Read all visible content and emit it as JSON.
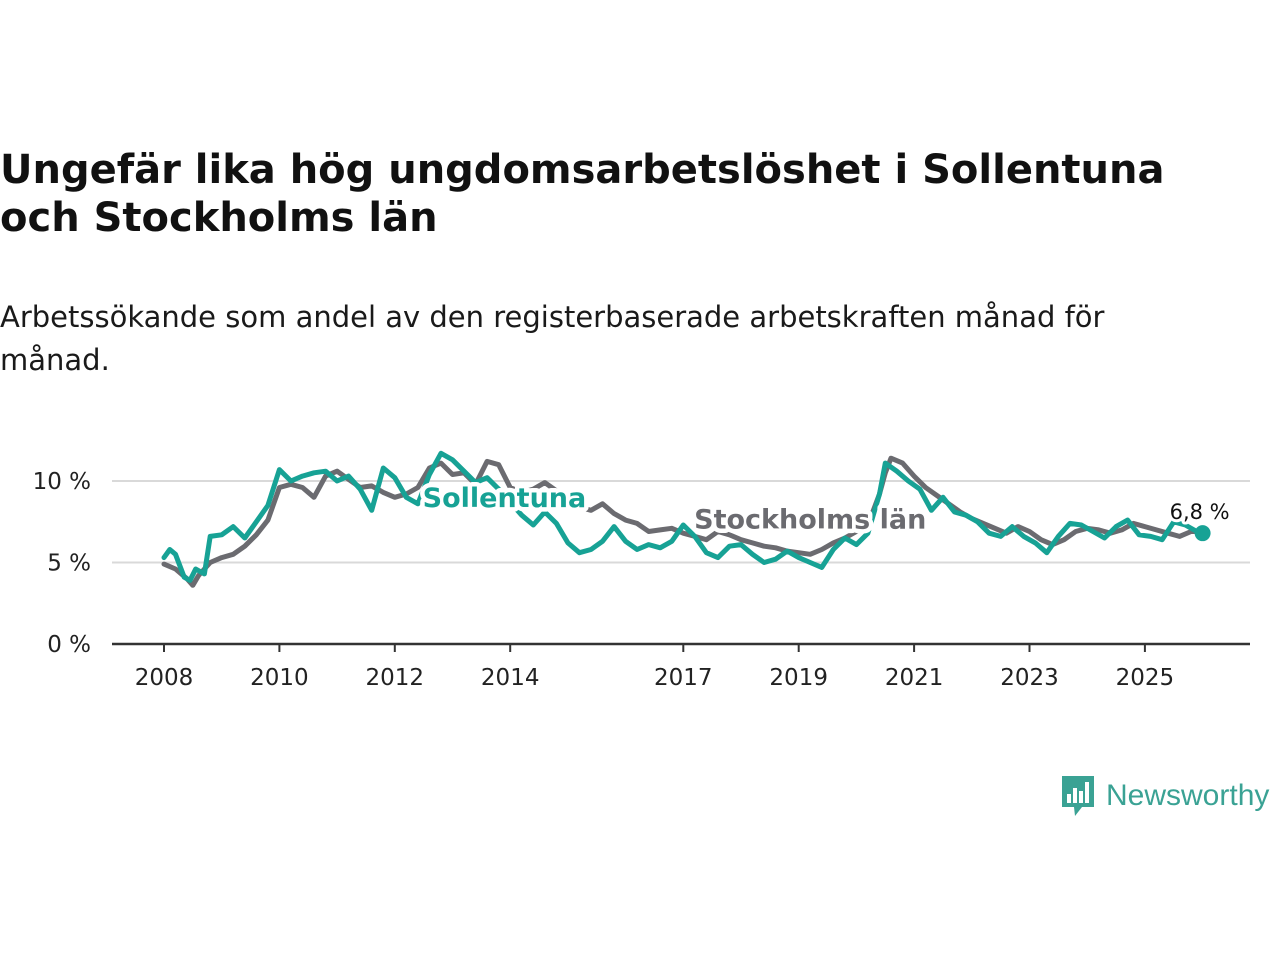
{
  "header": {
    "title": "Ungefär lika hög ungdomsarbetslöshet i Sollentuna och Stockholms län",
    "subtitle": "Arbetssökande som andel av den registerbaserade arbetskraften månad för månad."
  },
  "brand": {
    "name": "Newsworthy",
    "color": "#3aa294"
  },
  "chart_data": {
    "type": "line",
    "title": "Ungefär lika hög ungdomsarbetslöshet i Sollentuna och Stockholms län",
    "subtitle": "Arbetssökande som andel av den registerbaserade arbetskraften månad för månad.",
    "xlabel": "",
    "ylabel": "",
    "xlim": [
      2008,
      2026.9
    ],
    "ylim": [
      0,
      13
    ],
    "y_ticks": [
      {
        "value": 0,
        "label": "0 %"
      },
      {
        "value": 5,
        "label": "5 %"
      },
      {
        "value": 10,
        "label": "10 %"
      }
    ],
    "x_ticks": [
      {
        "value": 2008,
        "label": "2008"
      },
      {
        "value": 2010,
        "label": "2010"
      },
      {
        "value": 2012,
        "label": "2012"
      },
      {
        "value": 2014,
        "label": "2014"
      },
      {
        "value": 2017,
        "label": "2017"
      },
      {
        "value": 2019,
        "label": "2019"
      },
      {
        "value": 2021,
        "label": "2021"
      },
      {
        "value": 2023,
        "label": "2023"
      },
      {
        "value": 2025,
        "label": "2025"
      }
    ],
    "grid": true,
    "end_label": "6,8 %",
    "series": [
      {
        "name": "Stockholms län",
        "color": "#6b6b70",
        "label_pos": [
          2019.2,
          7.1
        ],
        "points": [
          [
            2008.0,
            4.9
          ],
          [
            2008.2,
            4.6
          ],
          [
            2008.4,
            4.0
          ],
          [
            2008.5,
            3.6
          ],
          [
            2008.6,
            4.2
          ],
          [
            2008.8,
            5.0
          ],
          [
            2009.0,
            5.3
          ],
          [
            2009.2,
            5.5
          ],
          [
            2009.4,
            6.0
          ],
          [
            2009.6,
            6.7
          ],
          [
            2009.8,
            7.6
          ],
          [
            2010.0,
            9.6
          ],
          [
            2010.2,
            9.8
          ],
          [
            2010.4,
            9.6
          ],
          [
            2010.6,
            9.0
          ],
          [
            2010.8,
            10.3
          ],
          [
            2011.0,
            10.6
          ],
          [
            2011.2,
            10.1
          ],
          [
            2011.4,
            9.6
          ],
          [
            2011.6,
            9.7
          ],
          [
            2011.8,
            9.3
          ],
          [
            2012.0,
            9.0
          ],
          [
            2012.2,
            9.2
          ],
          [
            2012.4,
            9.6
          ],
          [
            2012.6,
            10.8
          ],
          [
            2012.8,
            11.1
          ],
          [
            2013.0,
            10.4
          ],
          [
            2013.2,
            10.5
          ],
          [
            2013.4,
            9.8
          ],
          [
            2013.6,
            11.2
          ],
          [
            2013.8,
            11.0
          ],
          [
            2014.0,
            9.6
          ],
          [
            2014.2,
            9.3
          ],
          [
            2014.4,
            9.5
          ],
          [
            2014.6,
            9.9
          ],
          [
            2014.8,
            9.4
          ],
          [
            2015.0,
            8.7
          ],
          [
            2015.2,
            8.4
          ],
          [
            2015.4,
            8.2
          ],
          [
            2015.6,
            8.6
          ],
          [
            2015.8,
            8.0
          ],
          [
            2016.0,
            7.6
          ],
          [
            2016.2,
            7.4
          ],
          [
            2016.4,
            6.9
          ],
          [
            2016.6,
            7.0
          ],
          [
            2016.8,
            7.1
          ],
          [
            2017.0,
            6.8
          ],
          [
            2017.2,
            6.6
          ],
          [
            2017.4,
            6.4
          ],
          [
            2017.6,
            6.9
          ],
          [
            2017.8,
            6.7
          ],
          [
            2018.0,
            6.4
          ],
          [
            2018.2,
            6.2
          ],
          [
            2018.4,
            6.0
          ],
          [
            2018.6,
            5.9
          ],
          [
            2018.8,
            5.7
          ],
          [
            2019.0,
            5.6
          ],
          [
            2019.2,
            5.5
          ],
          [
            2019.4,
            5.8
          ],
          [
            2019.6,
            6.2
          ],
          [
            2019.8,
            6.5
          ],
          [
            2020.0,
            6.9
          ],
          [
            2020.2,
            7.3
          ],
          [
            2020.4,
            9.2
          ],
          [
            2020.5,
            10.5
          ],
          [
            2020.6,
            11.4
          ],
          [
            2020.8,
            11.1
          ],
          [
            2021.0,
            10.3
          ],
          [
            2021.2,
            9.6
          ],
          [
            2021.4,
            9.1
          ],
          [
            2021.6,
            8.6
          ],
          [
            2021.8,
            8.1
          ],
          [
            2022.0,
            7.7
          ],
          [
            2022.2,
            7.4
          ],
          [
            2022.4,
            7.1
          ],
          [
            2022.6,
            6.8
          ],
          [
            2022.8,
            7.2
          ],
          [
            2023.0,
            6.9
          ],
          [
            2023.2,
            6.4
          ],
          [
            2023.4,
            6.1
          ],
          [
            2023.6,
            6.4
          ],
          [
            2023.8,
            6.9
          ],
          [
            2024.0,
            7.1
          ],
          [
            2024.2,
            7.0
          ],
          [
            2024.4,
            6.8
          ],
          [
            2024.6,
            7.0
          ],
          [
            2024.8,
            7.4
          ],
          [
            2025.0,
            7.2
          ],
          [
            2025.2,
            7.0
          ],
          [
            2025.4,
            6.8
          ],
          [
            2025.6,
            6.6
          ],
          [
            2025.8,
            6.9
          ],
          [
            2026.0,
            6.9
          ]
        ]
      },
      {
        "name": "Sollentuna",
        "color": "#17a295",
        "label_pos": [
          2013.9,
          8.4
        ],
        "points": [
          [
            2008.0,
            5.3
          ],
          [
            2008.1,
            5.8
          ],
          [
            2008.2,
            5.5
          ],
          [
            2008.35,
            4.1
          ],
          [
            2008.45,
            3.9
          ],
          [
            2008.55,
            4.6
          ],
          [
            2008.7,
            4.3
          ],
          [
            2008.8,
            6.6
          ],
          [
            2009.0,
            6.7
          ],
          [
            2009.2,
            7.2
          ],
          [
            2009.4,
            6.5
          ],
          [
            2009.6,
            7.5
          ],
          [
            2009.8,
            8.5
          ],
          [
            2010.0,
            10.7
          ],
          [
            2010.2,
            10.0
          ],
          [
            2010.4,
            10.3
          ],
          [
            2010.6,
            10.5
          ],
          [
            2010.8,
            10.6
          ],
          [
            2011.0,
            10.0
          ],
          [
            2011.2,
            10.3
          ],
          [
            2011.4,
            9.5
          ],
          [
            2011.6,
            8.2
          ],
          [
            2011.8,
            10.8
          ],
          [
            2012.0,
            10.2
          ],
          [
            2012.2,
            9.0
          ],
          [
            2012.4,
            8.6
          ],
          [
            2012.6,
            10.4
          ],
          [
            2012.8,
            11.7
          ],
          [
            2013.0,
            11.3
          ],
          [
            2013.2,
            10.6
          ],
          [
            2013.4,
            9.9
          ],
          [
            2013.6,
            10.2
          ],
          [
            2013.8,
            9.5
          ],
          [
            2014.0,
            8.7
          ],
          [
            2014.2,
            7.9
          ],
          [
            2014.4,
            7.3
          ],
          [
            2014.6,
            8.1
          ],
          [
            2014.8,
            7.4
          ],
          [
            2015.0,
            6.2
          ],
          [
            2015.2,
            5.6
          ],
          [
            2015.4,
            5.8
          ],
          [
            2015.6,
            6.3
          ],
          [
            2015.8,
            7.2
          ],
          [
            2016.0,
            6.3
          ],
          [
            2016.2,
            5.8
          ],
          [
            2016.4,
            6.1
          ],
          [
            2016.6,
            5.9
          ],
          [
            2016.8,
            6.3
          ],
          [
            2017.0,
            7.3
          ],
          [
            2017.2,
            6.6
          ],
          [
            2017.4,
            5.6
          ],
          [
            2017.6,
            5.3
          ],
          [
            2017.8,
            6.0
          ],
          [
            2018.0,
            6.1
          ],
          [
            2018.2,
            5.5
          ],
          [
            2018.4,
            5.0
          ],
          [
            2018.6,
            5.2
          ],
          [
            2018.8,
            5.7
          ],
          [
            2019.0,
            5.3
          ],
          [
            2019.2,
            5.0
          ],
          [
            2019.4,
            4.7
          ],
          [
            2019.6,
            5.8
          ],
          [
            2019.8,
            6.5
          ],
          [
            2020.0,
            6.1
          ],
          [
            2020.2,
            6.8
          ],
          [
            2020.4,
            9.2
          ],
          [
            2020.5,
            11.1
          ],
          [
            2020.7,
            10.6
          ],
          [
            2020.9,
            10.0
          ],
          [
            2021.1,
            9.5
          ],
          [
            2021.3,
            8.2
          ],
          [
            2021.5,
            9.0
          ],
          [
            2021.7,
            8.1
          ],
          [
            2021.9,
            7.9
          ],
          [
            2022.1,
            7.5
          ],
          [
            2022.3,
            6.8
          ],
          [
            2022.5,
            6.6
          ],
          [
            2022.7,
            7.2
          ],
          [
            2022.9,
            6.6
          ],
          [
            2023.1,
            6.2
          ],
          [
            2023.3,
            5.6
          ],
          [
            2023.5,
            6.6
          ],
          [
            2023.7,
            7.4
          ],
          [
            2023.9,
            7.3
          ],
          [
            2024.1,
            6.9
          ],
          [
            2024.3,
            6.5
          ],
          [
            2024.5,
            7.2
          ],
          [
            2024.7,
            7.6
          ],
          [
            2024.9,
            6.7
          ],
          [
            2025.1,
            6.6
          ],
          [
            2025.3,
            6.4
          ],
          [
            2025.5,
            7.5
          ],
          [
            2025.7,
            7.3
          ],
          [
            2025.9,
            6.9
          ],
          [
            2026.0,
            6.8
          ]
        ]
      }
    ]
  }
}
